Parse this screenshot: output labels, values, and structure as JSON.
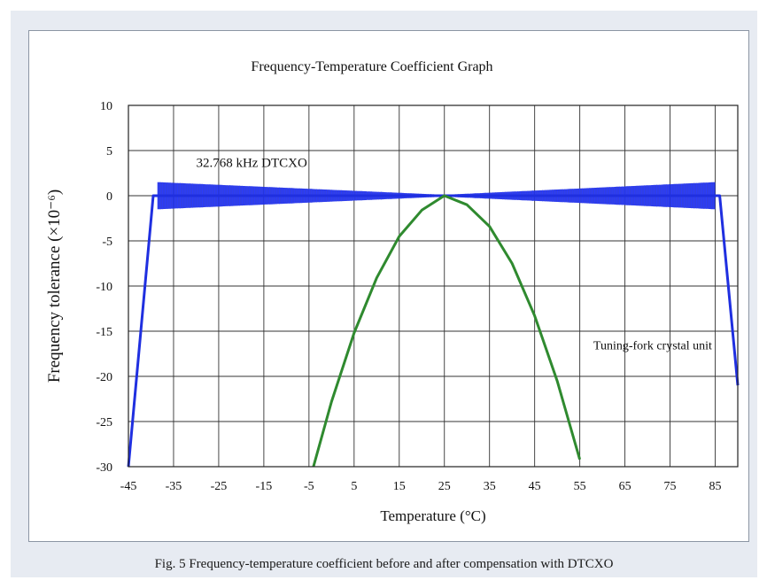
{
  "caption": "Fig. 5    Frequency-temperature coefficient before and after compensation with DTCXO",
  "chart_data": {
    "type": "line",
    "title": "Frequency-Temperature Coefficient Graph",
    "xlabel": "Temperature (°C)",
    "ylabel": "Frequency tolerance (×10⁻⁶)",
    "xlim": [
      -45,
      90
    ],
    "ylim": [
      -30,
      10
    ],
    "xticks": [
      -45,
      -35,
      -25,
      -15,
      -5,
      5,
      15,
      25,
      35,
      45,
      55,
      65,
      75,
      85
    ],
    "yticks": [
      10,
      5,
      0,
      -5,
      -10,
      -15,
      -20,
      -25,
      -30
    ],
    "grid": true,
    "series": [
      {
        "name": "32.768 kHz DTCXO",
        "label": "32.768 kHz DTCXO",
        "color": "#1f2fe0",
        "x": [
          -45,
          -39.5,
          -38.5,
          25,
          85,
          86,
          90
        ],
        "y": [
          -30,
          0,
          0,
          0,
          0,
          0,
          -21
        ],
        "band_x": [
          -38.5,
          25,
          85
        ],
        "band_halfwidth": [
          1.5,
          0.1,
          1.5
        ]
      },
      {
        "name": "Tuning-fork crystal unit",
        "label": "Tuning-fork crystal unit",
        "color": "#2f8a2f",
        "x": [
          -4,
          0,
          5,
          10,
          15,
          20,
          25,
          30,
          35,
          40,
          45,
          50,
          55
        ],
        "y": [
          -30,
          -22.8,
          -15.2,
          -9.1,
          -4.5,
          -1.6,
          0,
          -1.0,
          -3.4,
          -7.5,
          -13.3,
          -20.5,
          -29.2
        ]
      }
    ]
  }
}
